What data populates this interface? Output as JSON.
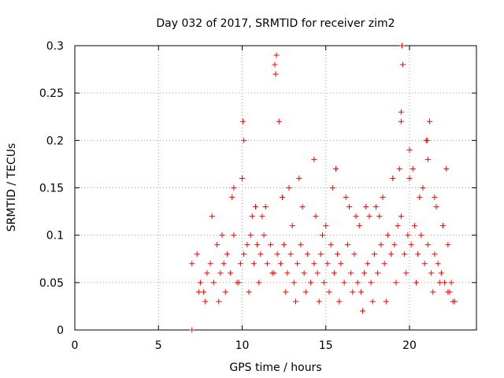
{
  "chart_data": {
    "type": "scatter",
    "title": "Day 032 of 2017, SRMTID for receiver zim2",
    "xlabel": "GPS time / hours",
    "ylabel": "SRMTID / TECUs",
    "xlim": [
      0,
      24
    ],
    "ylim": [
      0,
      0.3
    ],
    "xticks": [
      0,
      5,
      10,
      15,
      20
    ],
    "xtick_labels": [
      "0",
      "5",
      "10",
      "15",
      "20"
    ],
    "yticks": [
      0,
      0.05,
      0.1,
      0.15,
      0.2,
      0.25,
      0.3
    ],
    "ytick_labels": [
      "0",
      "0.05",
      "0.1",
      "0.15",
      "0.2",
      "0.25",
      "0.3"
    ],
    "grid": true,
    "marker": "+",
    "series": [
      {
        "name": "SRMTID",
        "color": "#ff0000",
        "x": [
          7.0,
          7.0,
          7.3,
          7.5,
          7.7,
          7.9,
          8.1,
          8.3,
          8.5,
          8.7,
          8.9,
          9.1,
          9.3,
          9.5,
          9.7,
          9.9,
          10.1,
          10.3,
          10.5,
          10.7,
          10.9,
          11.1,
          11.3,
          11.5,
          11.7,
          11.9,
          12.1,
          12.3,
          12.5,
          12.7,
          12.9,
          13.1,
          13.3,
          13.5,
          13.7,
          13.9,
          14.1,
          14.3,
          14.5,
          14.7,
          14.9,
          15.1,
          15.3,
          15.5,
          15.7,
          15.9,
          16.1,
          16.3,
          16.5,
          16.7,
          16.9,
          17.1,
          17.3,
          17.5,
          17.7,
          17.9,
          18.1,
          18.3,
          18.5,
          18.7,
          18.9,
          19.1,
          19.3,
          19.5,
          19.7,
          19.9,
          20.1,
          20.3,
          20.5,
          20.7,
          20.9,
          21.1,
          21.3,
          21.5,
          21.7,
          21.9,
          22.1,
          22.3,
          22.5,
          22.7,
          8.2,
          8.8,
          9.4,
          10.0,
          10.6,
          11.4,
          11.95,
          12.05,
          12.2,
          12.8,
          13.4,
          14.4,
          15.0,
          15.6,
          16.4,
          17.0,
          17.6,
          18.4,
          19.0,
          19.5,
          19.55,
          19.6,
          20.0,
          20.6,
          21.0,
          21.2,
          21.6,
          22.2,
          7.4,
          7.8,
          8.6,
          9.0,
          9.8,
          10.4,
          11.0,
          11.8,
          12.6,
          13.2,
          13.8,
          14.6,
          15.2,
          15.8,
          16.6,
          17.2,
          17.8,
          18.6,
          19.2,
          19.8,
          20.4,
          21.4,
          21.8,
          22.4,
          22.6,
          10.05,
          10.1,
          12.0,
          14.3,
          15.4,
          19.5,
          20.2,
          21.05,
          21.1,
          9.5,
          10.8,
          13.0,
          16.2,
          17.4,
          18.2,
          20.8,
          22.0,
          11.2,
          12.4,
          13.6,
          14.8,
          16.8,
          18.0,
          19.4,
          20.0,
          21.5,
          22.3
        ],
        "y": [
          0.0,
          0.07,
          0.08,
          0.05,
          0.04,
          0.06,
          0.07,
          0.05,
          0.09,
          0.06,
          0.07,
          0.08,
          0.06,
          0.1,
          0.05,
          0.07,
          0.08,
          0.09,
          0.1,
          0.07,
          0.09,
          0.08,
          0.1,
          0.07,
          0.09,
          0.06,
          0.08,
          0.07,
          0.09,
          0.06,
          0.08,
          0.05,
          0.07,
          0.09,
          0.06,
          0.08,
          0.05,
          0.07,
          0.06,
          0.08,
          0.05,
          0.07,
          0.09,
          0.06,
          0.08,
          0.07,
          0.05,
          0.09,
          0.06,
          0.08,
          0.05,
          0.04,
          0.06,
          0.07,
          0.05,
          0.08,
          0.06,
          0.09,
          0.07,
          0.1,
          0.08,
          0.09,
          0.11,
          0.12,
          0.08,
          0.1,
          0.09,
          0.11,
          0.08,
          0.1,
          0.07,
          0.09,
          0.06,
          0.08,
          0.07,
          0.06,
          0.05,
          0.04,
          0.05,
          0.03,
          0.12,
          0.1,
          0.14,
          0.16,
          0.12,
          0.13,
          0.28,
          0.29,
          0.22,
          0.15,
          0.16,
          0.12,
          0.11,
          0.17,
          0.13,
          0.11,
          0.12,
          0.14,
          0.16,
          0.22,
          0.3,
          0.28,
          0.19,
          0.14,
          0.2,
          0.22,
          0.13,
          0.17,
          0.04,
          0.03,
          0.03,
          0.04,
          0.05,
          0.04,
          0.05,
          0.06,
          0.04,
          0.03,
          0.04,
          0.03,
          0.04,
          0.03,
          0.04,
          0.02,
          0.03,
          0.03,
          0.05,
          0.06,
          0.05,
          0.04,
          0.05,
          0.04,
          0.03,
          0.22,
          0.2,
          0.27,
          0.18,
          0.15,
          0.23,
          0.17,
          0.2,
          0.18,
          0.15,
          0.13,
          0.11,
          0.14,
          0.13,
          0.12,
          0.15,
          0.11,
          0.12,
          0.14,
          0.13,
          0.1,
          0.12,
          0.13,
          0.17,
          0.16,
          0.14,
          0.09
        ]
      }
    ]
  }
}
